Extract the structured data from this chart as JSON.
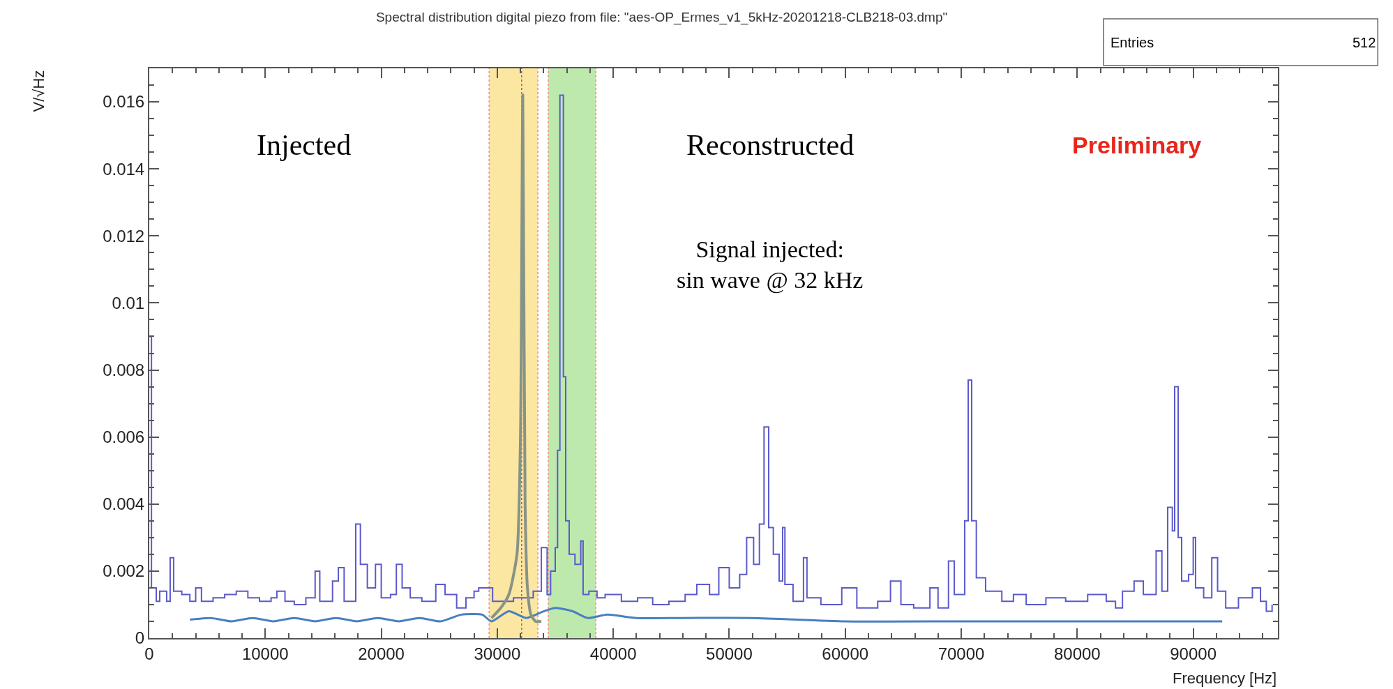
{
  "chart_data": {
    "type": "step",
    "title": "Spectral distribution digital piezo from file: \"aes-OP_Ermes_v1_5kHz-20201218-CLB218-03.dmp\"",
    "xlabel": "Frequency [Hz]",
    "ylabel": "V/√Hz",
    "xlim": [
      0,
      97300
    ],
    "ylim": [
      0,
      0.017
    ],
    "xticks": [
      0,
      10000,
      20000,
      30000,
      40000,
      50000,
      60000,
      70000,
      80000,
      90000
    ],
    "yticks": [
      0,
      0.002,
      0.004,
      0.006,
      0.008,
      0.01,
      0.012,
      0.014,
      0.016
    ],
    "grid": false,
    "marker": "none",
    "bands": [
      {
        "axis": "x",
        "from": 29300,
        "to": 33500,
        "color": "#fbe6a2"
      },
      {
        "axis": "x",
        "from": 34400,
        "to": 38500,
        "color": "#bde9ad"
      }
    ],
    "ref_lines": [
      {
        "axis": "x",
        "value": 32100,
        "color": "#e8463c",
        "line_style": "dotted"
      },
      {
        "axis": "x",
        "value": 29300,
        "color": "#f08a80",
        "line_style": "dotted"
      },
      {
        "axis": "x",
        "value": 33500,
        "color": "#f08a80",
        "line_style": "dotted"
      },
      {
        "axis": "x",
        "value": 34400,
        "color": "#f08a80",
        "line_style": "dotted"
      },
      {
        "axis": "x",
        "value": 38500,
        "color": "#f08a80",
        "line_style": "dotted"
      }
    ],
    "annotations": [
      "Injected",
      "Reconstructed",
      "Signal injected:\nsin wave @ 32 kHz",
      "Preliminary",
      "Entries",
      "512"
    ],
    "series": [
      {
        "color": "#5a5acc",
        "x": [
          0,
          190,
          600,
          900,
          1500,
          1800,
          2100,
          2800,
          3500,
          4000,
          4500,
          5500,
          6500,
          7500,
          8500,
          9500,
          10500,
          11000,
          11700,
          12500,
          13500,
          14300,
          14700,
          15800,
          16300,
          16800,
          17800,
          18200,
          18800,
          19500,
          20000,
          20800,
          21300,
          21800,
          22500,
          23500,
          24700,
          25500,
          26500,
          27300,
          28000,
          28400,
          29600,
          31400,
          33100,
          33800,
          34300,
          34600,
          35000,
          35200,
          35400,
          35700,
          35900,
          36200,
          36700,
          37200,
          37400,
          37900,
          38600,
          39300,
          40700,
          42100,
          43400,
          44800,
          46200,
          47200,
          48300,
          49100,
          50000,
          50900,
          51500,
          52100,
          52600,
          53000,
          53400,
          53800,
          54300,
          54600,
          54800,
          55500,
          56400,
          56700,
          57900,
          59700,
          61000,
          62800,
          63900,
          64800,
          65900,
          67300,
          68000,
          68900,
          69400,
          70300,
          70600,
          70900,
          71300,
          72100,
          73500,
          74500,
          75600,
          77300,
          79000,
          80900,
          82500,
          83300,
          83900,
          84900,
          85700,
          86800,
          87300,
          87800,
          88200,
          88400,
          88700,
          89000,
          89600,
          90000,
          90200,
          90900,
          91600,
          92100,
          92800,
          93900,
          95100,
          95800,
          96300,
          96800
        ],
        "values": [
          0.009,
          0.0015,
          0.0011,
          0.0014,
          0.0011,
          0.0024,
          0.0014,
          0.0013,
          0.0011,
          0.0015,
          0.0011,
          0.0012,
          0.0013,
          0.0014,
          0.0012,
          0.0011,
          0.0012,
          0.0014,
          0.0011,
          0.001,
          0.0012,
          0.002,
          0.0011,
          0.0017,
          0.0021,
          0.0011,
          0.0034,
          0.0022,
          0.0015,
          0.0022,
          0.0012,
          0.0013,
          0.0022,
          0.0015,
          0.0012,
          0.0011,
          0.0016,
          0.0013,
          0.0009,
          0.0012,
          0.0014,
          0.0015,
          0.0011,
          0.0012,
          0.0014,
          0.0027,
          0.0013,
          0.002,
          0.0027,
          0.0056,
          0.0162,
          0.0078,
          0.0035,
          0.0025,
          0.0022,
          0.0029,
          0.0013,
          0.0014,
          0.0012,
          0.0013,
          0.0011,
          0.0012,
          0.001,
          0.0011,
          0.0013,
          0.0016,
          0.0013,
          0.0021,
          0.0015,
          0.0019,
          0.003,
          0.0022,
          0.0034,
          0.0063,
          0.0033,
          0.0025,
          0.0017,
          0.0033,
          0.0016,
          0.0011,
          0.0024,
          0.0012,
          0.001,
          0.0015,
          0.0009,
          0.0011,
          0.0017,
          0.001,
          0.0009,
          0.0015,
          0.0009,
          0.0023,
          0.0013,
          0.0035,
          0.0077,
          0.0035,
          0.0018,
          0.0014,
          0.0011,
          0.0013,
          0.001,
          0.0012,
          0.0011,
          0.0013,
          0.0011,
          0.0009,
          0.0014,
          0.0017,
          0.0013,
          0.0026,
          0.0014,
          0.0039,
          0.0032,
          0.0075,
          0.003,
          0.0017,
          0.0019,
          0.003,
          0.0015,
          0.0012,
          0.0024,
          0.0014,
          0.0009,
          0.0012,
          0.0015,
          0.0011,
          0.0008,
          0.001
        ]
      },
      {
        "type": "line",
        "color": "#4a7fc0",
        "x": [
          3500,
          5300,
          7100,
          8900,
          10700,
          12500,
          14300,
          16100,
          17900,
          19700,
          21500,
          23300,
          25100,
          26900,
          28700,
          29500,
          31000,
          32500,
          34000,
          35000,
          36500,
          37800,
          39500,
          42000,
          46000,
          52000,
          60000,
          70000,
          80000,
          92500
        ],
        "values": [
          0.00055,
          0.0006,
          0.0005,
          0.0006,
          0.0005,
          0.0006,
          0.0005,
          0.0006,
          0.0005,
          0.0006,
          0.0005,
          0.0006,
          0.0005,
          0.0007,
          0.0007,
          0.0005,
          0.0008,
          0.0006,
          0.0008,
          0.0009,
          0.0008,
          0.0006,
          0.0007,
          0.0006,
          0.0006,
          0.0006,
          0.0005,
          0.0005,
          0.0005,
          0.0005
        ]
      },
      {
        "type": "line",
        "color": "#869488",
        "x": [
          29500,
          30300,
          31000,
          31700,
          32000,
          32200,
          32400,
          32600,
          32900,
          33300,
          33800
        ],
        "values": [
          0.0006,
          0.0009,
          0.0013,
          0.0025,
          0.006,
          0.0162,
          0.004,
          0.0015,
          0.0007,
          0.0005,
          0.0005
        ]
      }
    ]
  }
}
